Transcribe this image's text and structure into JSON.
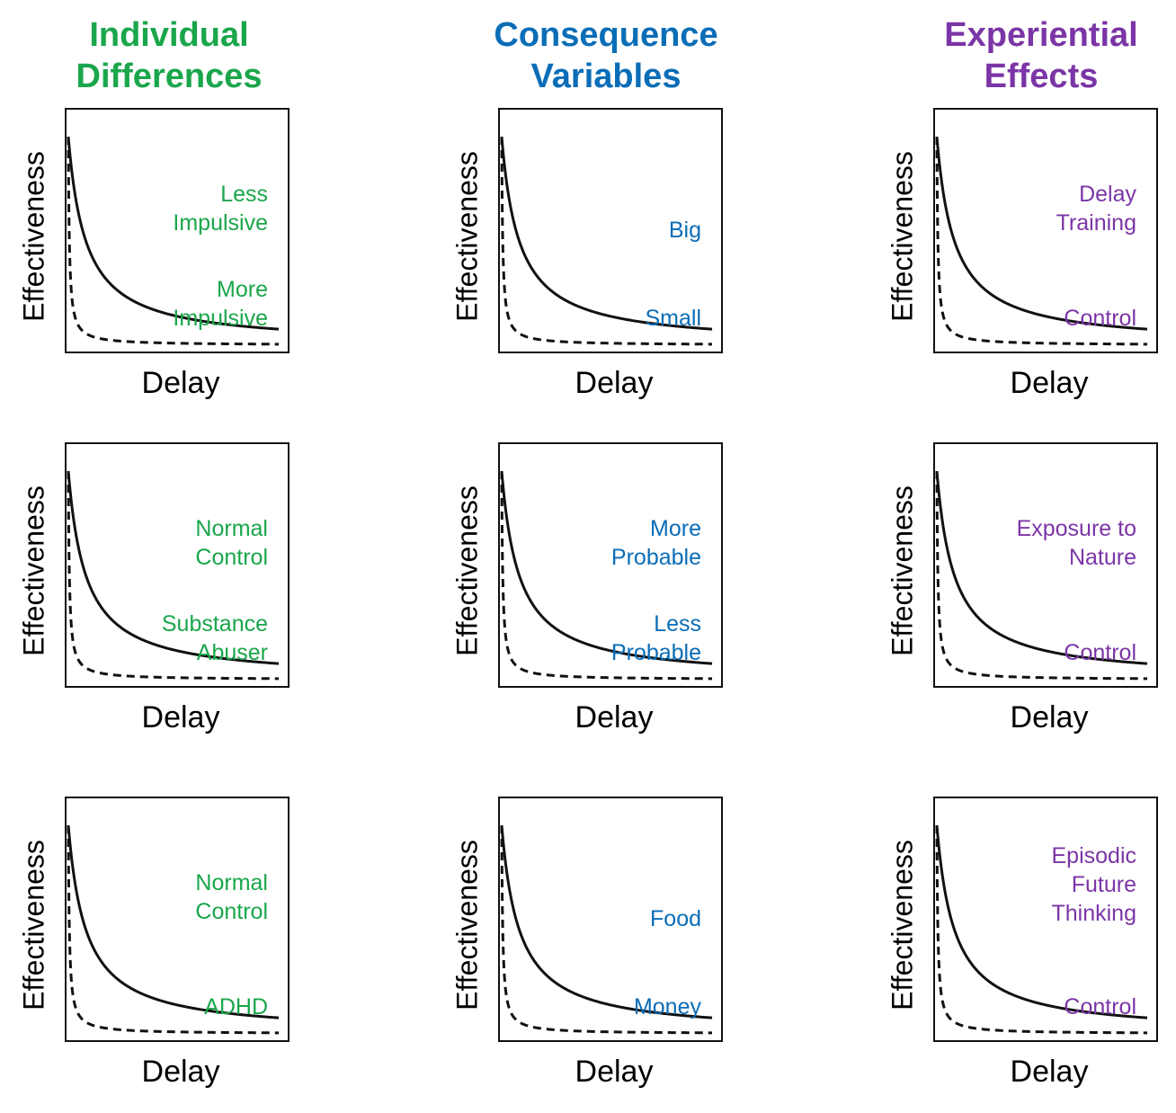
{
  "colors": {
    "individual": "#1aa64b",
    "consequence": "#0a6db7",
    "experiential": "#7b35a6",
    "curve": "#111111"
  },
  "columns": [
    {
      "title_lines": [
        "Individual",
        "Differences"
      ],
      "color_key": "individual"
    },
    {
      "title_lines": [
        "Consequence",
        "Variables"
      ],
      "color_key": "consequence"
    },
    {
      "title_lines": [
        "Experiential",
        "Effects"
      ],
      "color_key": "experiential"
    }
  ],
  "chart_data": [
    {
      "type": "line",
      "xlabel": "Delay",
      "ylabel": "Effectiveness",
      "series": [
        {
          "name": "Less Impulsive",
          "lines": [
            "Less",
            "Impulsive"
          ],
          "style": "solid",
          "k": 0.12
        },
        {
          "name": "More Impulsive",
          "lines": [
            "More",
            "Impulsive"
          ],
          "style": "dashed",
          "k": 2.0
        }
      ]
    },
    {
      "type": "line",
      "xlabel": "Delay",
      "ylabel": "Effectiveness",
      "series": [
        {
          "name": "Big",
          "lines": [
            "Big"
          ],
          "style": "solid",
          "k": 0.12
        },
        {
          "name": "Small",
          "lines": [
            "Small"
          ],
          "style": "dashed",
          "k": 2.0
        }
      ]
    },
    {
      "type": "line",
      "xlabel": "Delay",
      "ylabel": "Effectiveness",
      "series": [
        {
          "name": "Delay Training",
          "lines": [
            "Delay",
            "Training"
          ],
          "style": "solid",
          "k": 0.12
        },
        {
          "name": "Control",
          "lines": [
            "Control"
          ],
          "style": "dashed",
          "k": 2.0
        }
      ]
    },
    {
      "type": "line",
      "xlabel": "Delay",
      "ylabel": "Effectiveness",
      "series": [
        {
          "name": "Normal Control",
          "lines": [
            "Normal",
            "Control"
          ],
          "style": "solid",
          "k": 0.12
        },
        {
          "name": "Substance Abuser",
          "lines": [
            "Substance",
            "Abuser"
          ],
          "style": "dashed",
          "k": 2.0
        }
      ]
    },
    {
      "type": "line",
      "xlabel": "Delay",
      "ylabel": "Effectiveness",
      "series": [
        {
          "name": "More Probable",
          "lines": [
            "More",
            "Probable"
          ],
          "style": "solid",
          "k": 0.12
        },
        {
          "name": "Less Probable",
          "lines": [
            "Less",
            "Probable"
          ],
          "style": "dashed",
          "k": 2.0
        }
      ]
    },
    {
      "type": "line",
      "xlabel": "Delay",
      "ylabel": "Effectiveness",
      "series": [
        {
          "name": "Exposure to Nature",
          "lines": [
            "Exposure to",
            "Nature"
          ],
          "style": "solid",
          "k": 0.12
        },
        {
          "name": "Control",
          "lines": [
            "Control"
          ],
          "style": "dashed",
          "k": 2.0
        }
      ]
    },
    {
      "type": "line",
      "xlabel": "Delay",
      "ylabel": "Effectiveness",
      "series": [
        {
          "name": "Normal Control",
          "lines": [
            "Normal",
            "Control"
          ],
          "style": "solid",
          "k": 0.12
        },
        {
          "name": "ADHD",
          "lines": [
            "ADHD"
          ],
          "style": "dashed",
          "k": 2.0
        }
      ]
    },
    {
      "type": "line",
      "xlabel": "Delay",
      "ylabel": "Effectiveness",
      "series": [
        {
          "name": "Food",
          "lines": [
            "Food"
          ],
          "style": "solid",
          "k": 0.12
        },
        {
          "name": "Money",
          "lines": [
            "Money"
          ],
          "style": "dashed",
          "k": 2.0
        }
      ]
    },
    {
      "type": "line",
      "xlabel": "Delay",
      "ylabel": "Effectiveness",
      "series": [
        {
          "name": "Episodic Future Thinking",
          "lines": [
            "Episodic",
            "Future",
            "Thinking"
          ],
          "style": "solid",
          "k": 0.12
        },
        {
          "name": "Control",
          "lines": [
            "Control"
          ],
          "style": "dashed",
          "k": 2.0
        }
      ]
    }
  ]
}
